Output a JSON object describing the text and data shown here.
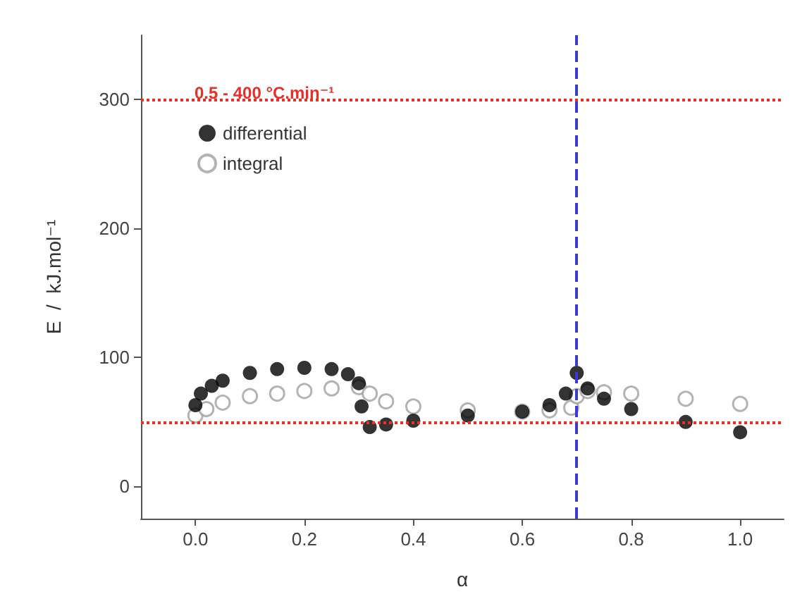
{
  "chart_data": {
    "type": "scatter",
    "xlabel": "α",
    "ylabel": "E  /  kJ.mol⁻¹",
    "annotations": [
      "0.5 - 400 °C.min⁻¹"
    ],
    "xlim": [
      -0.1,
      1.08
    ],
    "ylim": [
      -25,
      350
    ],
    "xticks": [
      {
        "value": 0,
        "label": "0.0"
      },
      {
        "value": 0.2,
        "label": "0.2"
      },
      {
        "value": 0.4,
        "label": "0.4"
      },
      {
        "value": 0.6,
        "label": "0.6"
      },
      {
        "value": 0.8,
        "label": "0.8"
      },
      {
        "value": 1,
        "label": "1.0"
      }
    ],
    "yticks": [
      0,
      100,
      200,
      300
    ],
    "grid": false,
    "legend": "top left",
    "marker": "circle",
    "ref_lines": [
      {
        "axis": "y",
        "value": 300,
        "color": "#e8302a",
        "line_style": "dotted"
      },
      {
        "axis": "y",
        "value": 50,
        "color": "#e8302a",
        "line_style": "dotted"
      },
      {
        "axis": "x",
        "value": 0.7,
        "color": "#3a3ad0",
        "line_style": "dashed"
      }
    ],
    "series": [
      {
        "name": "integral",
        "color": "#a0a0a0",
        "x": [
          0.0,
          0.02,
          0.05,
          0.1,
          0.15,
          0.2,
          0.25,
          0.3,
          0.32,
          0.35,
          0.4,
          0.5,
          0.6,
          0.65,
          0.69,
          0.7,
          0.72,
          0.75,
          0.8,
          0.9,
          1.0
        ],
        "values": [
          55,
          60,
          65,
          70,
          72,
          74,
          76,
          77,
          72,
          66,
          62,
          59,
          58,
          59,
          61,
          70,
          74,
          73,
          72,
          68,
          64
        ]
      },
      {
        "name": "differential",
        "color": "#000000",
        "x": [
          0.0,
          0.01,
          0.03,
          0.05,
          0.1,
          0.15,
          0.2,
          0.25,
          0.28,
          0.3,
          0.305,
          0.32,
          0.35,
          0.4,
          0.5,
          0.6,
          0.65,
          0.68,
          0.7,
          0.72,
          0.75,
          0.8,
          0.9,
          1.0
        ],
        "values": [
          63,
          72,
          78,
          82,
          88,
          91,
          92,
          91,
          87,
          80,
          62,
          46,
          48,
          51,
          55,
          58,
          63,
          72,
          88,
          76,
          68,
          60,
          50,
          42
        ]
      }
    ]
  }
}
